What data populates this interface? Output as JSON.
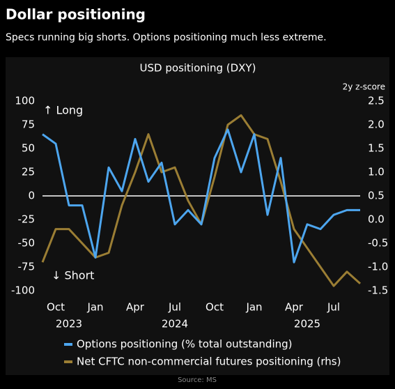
{
  "header": {
    "title": "Dollar positioning",
    "subtitle": "Specs running big shorts. Options positioning much less extreme."
  },
  "chart_data": {
    "type": "line",
    "title": "USD positioning (DXY)",
    "y2_label": "2y z-score",
    "x": [
      "2023-09",
      "2023-10",
      "2023-11",
      "2023-12",
      "2024-01",
      "2024-02",
      "2024-03",
      "2024-04",
      "2024-05",
      "2024-06",
      "2024-07",
      "2024-08",
      "2024-09",
      "2024-10",
      "2024-11",
      "2024-12",
      "2025-01",
      "2025-02",
      "2025-03",
      "2025-04",
      "2025-05",
      "2025-06",
      "2025-07",
      "2025-08",
      "2025-09"
    ],
    "xlim": [
      "2023-09",
      "2025-09"
    ],
    "xticks": [
      {
        "value": "2023-10",
        "label": "Oct"
      },
      {
        "value": "2024-01",
        "label": "Jan"
      },
      {
        "value": "2024-04",
        "label": "Apr"
      },
      {
        "value": "2024-07",
        "label": "Jul"
      },
      {
        "value": "2024-10",
        "label": "Oct"
      },
      {
        "value": "2025-01",
        "label": "Jan"
      },
      {
        "value": "2025-04",
        "label": "Apr"
      },
      {
        "value": "2025-07",
        "label": "Jul"
      }
    ],
    "year_labels": [
      {
        "value": "2023-11",
        "label": "2023"
      },
      {
        "value": "2024-07",
        "label": "2024"
      },
      {
        "value": "2025-05",
        "label": "2025"
      }
    ],
    "ylim": [
      -100,
      100
    ],
    "yticks": [
      -100,
      -75,
      -50,
      -25,
      0,
      25,
      50,
      75,
      100
    ],
    "y2lim": [
      -1.5,
      2.5
    ],
    "y2ticks": [
      -1.5,
      {
        "value": -1,
        "label": "-1.0"
      },
      -0.5,
      {
        "value": 0,
        "label": "0.0"
      },
      0.5,
      {
        "value": 1,
        "label": "1.0"
      },
      1.5,
      {
        "value": 2,
        "label": "2.0"
      },
      2.5
    ],
    "annotations": [
      "↑ Long",
      "↓ Short"
    ],
    "series": [
      {
        "name": "Options positioning (% total outstanding)",
        "color": "#4da6ef",
        "values": [
          65,
          55,
          -10,
          -10,
          -65,
          30,
          5,
          60,
          15,
          35,
          -30,
          -15,
          -30,
          40,
          70,
          25,
          65,
          -20,
          40,
          -70,
          -30,
          -35,
          -20,
          -15,
          -15
        ]
      },
      {
        "name": "Net CFTC non-commercial futures positioning (rhs)",
        "color": "#9b7e34",
        "axis": "y2",
        "values": [
          -0.9,
          -0.2,
          -0.2,
          -0.5,
          -0.8,
          -0.7,
          0.3,
          1.0,
          1.8,
          1.0,
          1.1,
          0.4,
          -0.1,
          0.9,
          2.0,
          2.2,
          1.8,
          1.7,
          0.8,
          -0.2,
          -0.6,
          -1.0,
          -1.4,
          -1.1,
          -1.35
        ]
      }
    ]
  },
  "source": "Source: MS"
}
